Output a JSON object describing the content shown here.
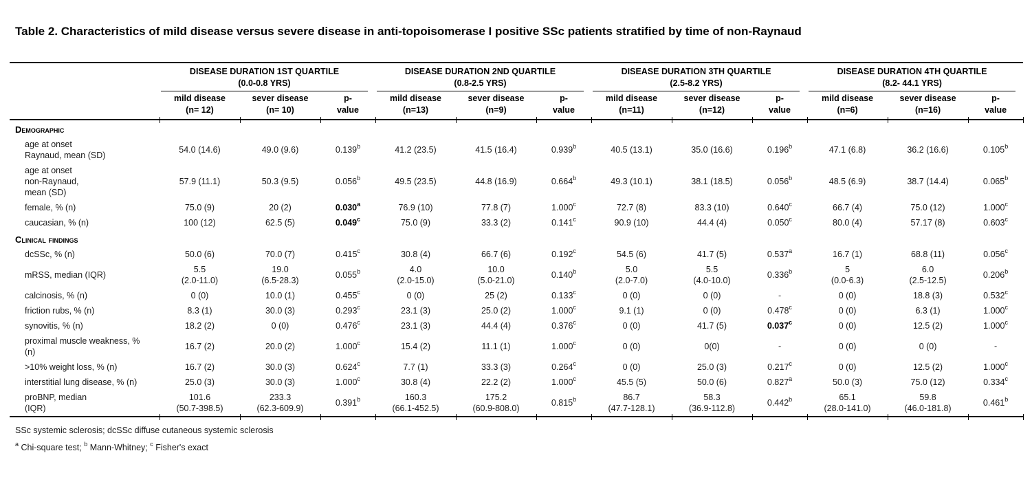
{
  "page": {
    "title": "Table 2. Characteristics of mild disease versus severe disease in anti-topoisomerase I positive SSc patients stratified by time of non-Raynaud",
    "background_color": "#ffffff",
    "rule_color": "#000000",
    "text_color": "#1a1a1a"
  },
  "table": {
    "groups": [
      {
        "title": "DISEASE DURATION 1ST QUARTILE",
        "range": "(0.0-0.8 YRS)",
        "cols": [
          [
            "mild disease",
            "(n= 12)"
          ],
          [
            "sever disease",
            "(n= 10)"
          ],
          [
            "p-",
            "value"
          ]
        ]
      },
      {
        "title": "DISEASE DURATION 2ND QUARTILE",
        "range": "(0.8-2.5 YRS)",
        "cols": [
          [
            "mild disease",
            "(n=13)"
          ],
          [
            "sever disease",
            "(n=9)"
          ],
          [
            "p-",
            "value"
          ]
        ]
      },
      {
        "title": "DISEASE DURATION 3TH QUARTILE",
        "range": "(2.5-8.2 YRS)",
        "cols": [
          [
            "mild disease",
            "(n=11)"
          ],
          [
            "sever disease",
            "(n=12)"
          ],
          [
            "p-",
            "value"
          ]
        ]
      },
      {
        "title": "DISEASE DURATION 4TH QUARTILE",
        "range": "(8.2- 44.1 YRS)",
        "cols": [
          [
            "mild disease",
            "(n=6)"
          ],
          [
            "sever disease",
            "(n=16)"
          ],
          [
            "p-",
            "value"
          ]
        ]
      }
    ],
    "sections": [
      {
        "label": "Demographic",
        "rows": [
          {
            "label": [
              "age at onset",
              "Raynaud, mean (SD)"
            ],
            "cells": [
              {
                "mild": [
                  "54.0 (14.6)"
                ],
                "sever": [
                  "49.0 (9.6)"
                ],
                "p": "0.139",
                "ps": "b",
                "pb": false
              },
              {
                "mild": [
                  "41.2 (23.5)"
                ],
                "sever": [
                  "41.5 (16.4)"
                ],
                "p": "0.939",
                "ps": "b",
                "pb": false
              },
              {
                "mild": [
                  "40.5 (13.1)"
                ],
                "sever": [
                  "35.0 (16.6)"
                ],
                "p": "0.196",
                "ps": "b",
                "pb": false
              },
              {
                "mild": [
                  "47.1 (6.8)"
                ],
                "sever": [
                  "36.2 (16.6)"
                ],
                "p": "0.105",
                "ps": "b",
                "pb": false
              }
            ]
          },
          {
            "label": [
              "age at onset",
              "non-Raynaud,",
              "mean (SD)"
            ],
            "cells": [
              {
                "mild": [
                  "57.9 (11.1)"
                ],
                "sever": [
                  "50.3 (9.5)"
                ],
                "p": "0.056",
                "ps": "b",
                "pb": false
              },
              {
                "mild": [
                  "49.5 (23.5)"
                ],
                "sever": [
                  "44.8 (16.9)"
                ],
                "p": "0.664",
                "ps": "b",
                "pb": false
              },
              {
                "mild": [
                  "49.3 (10.1)"
                ],
                "sever": [
                  "38.1 (18.5)"
                ],
                "p": "0.056",
                "ps": "b",
                "pb": false
              },
              {
                "mild": [
                  "48.5 (6.9)"
                ],
                "sever": [
                  "38.7 (14.4)"
                ],
                "p": "0.065",
                "ps": "b",
                "pb": false
              }
            ]
          },
          {
            "label": [
              "female, % (n)"
            ],
            "cells": [
              {
                "mild": [
                  "75.0 (9)"
                ],
                "sever": [
                  "20 (2)"
                ],
                "p": "0.030",
                "ps": "a",
                "pb": true
              },
              {
                "mild": [
                  "76.9 (10)"
                ],
                "sever": [
                  "77.8 (7)"
                ],
                "p": "1.000",
                "ps": "c",
                "pb": false
              },
              {
                "mild": [
                  "72.7 (8)"
                ],
                "sever": [
                  "83.3 (10)"
                ],
                "p": "0.640",
                "ps": "c",
                "pb": false
              },
              {
                "mild": [
                  "66.7 (4)"
                ],
                "sever": [
                  "75.0 (12)"
                ],
                "p": "1.000",
                "ps": "c",
                "pb": false
              }
            ]
          },
          {
            "label": [
              "caucasian, % (n)"
            ],
            "cells": [
              {
                "mild": [
                  "100 (12)"
                ],
                "sever": [
                  "62.5 (5)"
                ],
                "p": "0.049",
                "ps": "c",
                "pb": true
              },
              {
                "mild": [
                  "75.0 (9)"
                ],
                "sever": [
                  "33.3 (2)"
                ],
                "p": "0.141",
                "ps": "c",
                "pb": false
              },
              {
                "mild": [
                  "90.9 (10)"
                ],
                "sever": [
                  "44.4 (4)"
                ],
                "p": "0.050",
                "ps": "c",
                "pb": false
              },
              {
                "mild": [
                  "80.0 (4)"
                ],
                "sever": [
                  "57.17 (8)"
                ],
                "p": "0.603",
                "ps": "c",
                "pb": false
              }
            ]
          }
        ]
      },
      {
        "label": "Clinical findings",
        "rows": [
          {
            "label": [
              "dcSSc, % (n)"
            ],
            "cells": [
              {
                "mild": [
                  "50.0 (6)"
                ],
                "sever": [
                  "70.0 (7)"
                ],
                "p": "0.415",
                "ps": "c",
                "pb": false
              },
              {
                "mild": [
                  "30.8 (4)"
                ],
                "sever": [
                  "66.7 (6)"
                ],
                "p": "0.192",
                "ps": "c",
                "pb": false
              },
              {
                "mild": [
                  "54.5 (6)"
                ],
                "sever": [
                  "41.7 (5)"
                ],
                "p": "0.537",
                "ps": "a",
                "pb": false
              },
              {
                "mild": [
                  "16.7 (1)"
                ],
                "sever": [
                  "68.8 (11)"
                ],
                "p": "0.056",
                "ps": "c",
                "pb": false
              }
            ]
          },
          {
            "label": [
              "mRSS, median (IQR)"
            ],
            "cells": [
              {
                "mild": [
                  "5.5",
                  "(2.0-11.0)"
                ],
                "sever": [
                  "19.0",
                  "(6.5-28.3)"
                ],
                "p": "0.055",
                "ps": "b",
                "pb": false
              },
              {
                "mild": [
                  "4.0",
                  "(2.0-15.0)"
                ],
                "sever": [
                  "10.0",
                  "(5.0-21.0)"
                ],
                "p": "0.140",
                "ps": "b",
                "pb": false
              },
              {
                "mild": [
                  "5.0",
                  "(2.0-7.0)"
                ],
                "sever": [
                  "5.5",
                  "(4.0-10.0)"
                ],
                "p": "0.336",
                "ps": "b",
                "pb": false
              },
              {
                "mild": [
                  "5",
                  "(0.0-6.3)"
                ],
                "sever": [
                  "6.0",
                  "(2.5-12.5)"
                ],
                "p": "0.206",
                "ps": "b",
                "pb": false
              }
            ]
          },
          {
            "label": [
              "calcinosis, % (n)"
            ],
            "cells": [
              {
                "mild": [
                  "0 (0)"
                ],
                "sever": [
                  "10.0 (1)"
                ],
                "p": "0.455",
                "ps": "c",
                "pb": false
              },
              {
                "mild": [
                  "0 (0)"
                ],
                "sever": [
                  "25 (2)"
                ],
                "p": "0.133",
                "ps": "c",
                "pb": false
              },
              {
                "mild": [
                  "0 (0)"
                ],
                "sever": [
                  "0 (0)"
                ],
                "p": "-",
                "ps": "",
                "pb": false
              },
              {
                "mild": [
                  "0 (0)"
                ],
                "sever": [
                  "18.8 (3)"
                ],
                "p": "0.532",
                "ps": "c",
                "pb": false
              }
            ]
          },
          {
            "label": [
              "friction rubs, % (n)"
            ],
            "cells": [
              {
                "mild": [
                  "8.3 (1)"
                ],
                "sever": [
                  "30.0 (3)"
                ],
                "p": "0.293",
                "ps": "c",
                "pb": false
              },
              {
                "mild": [
                  "23.1 (3)"
                ],
                "sever": [
                  "25.0 (2)"
                ],
                "p": "1.000",
                "ps": "c",
                "pb": false
              },
              {
                "mild": [
                  "9.1 (1)"
                ],
                "sever": [
                  "0 (0)"
                ],
                "p": "0.478",
                "ps": "c",
                "pb": false
              },
              {
                "mild": [
                  "0 (0)"
                ],
                "sever": [
                  "6.3 (1)"
                ],
                "p": "1.000",
                "ps": "c",
                "pb": false
              }
            ]
          },
          {
            "label": [
              "synovitis, % (n)"
            ],
            "cells": [
              {
                "mild": [
                  "18.2 (2)"
                ],
                "sever": [
                  "0 (0)"
                ],
                "p": "0.476",
                "ps": "c",
                "pb": false
              },
              {
                "mild": [
                  "23.1 (3)"
                ],
                "sever": [
                  "44.4 (4)"
                ],
                "p": "0.376",
                "ps": "c",
                "pb": false
              },
              {
                "mild": [
                  "0 (0)"
                ],
                "sever": [
                  "41.7 (5)"
                ],
                "p": "0.037",
                "ps": "c",
                "pb": true
              },
              {
                "mild": [
                  "0 (0)"
                ],
                "sever": [
                  "12.5 (2)"
                ],
                "p": "1.000",
                "ps": "c",
                "pb": false
              }
            ]
          },
          {
            "label": [
              "proximal muscle weakness, %",
              "(n)"
            ],
            "cells": [
              {
                "mild": [
                  "16.7 (2)"
                ],
                "sever": [
                  "20.0 (2)"
                ],
                "p": "1.000",
                "ps": "c",
                "pb": false
              },
              {
                "mild": [
                  "15.4 (2)"
                ],
                "sever": [
                  "11.1 (1)"
                ],
                "p": "1.000",
                "ps": "c",
                "pb": false
              },
              {
                "mild": [
                  "0 (0)"
                ],
                "sever": [
                  "0(0)"
                ],
                "p": "-",
                "ps": "",
                "pb": false
              },
              {
                "mild": [
                  "0 (0)"
                ],
                "sever": [
                  "0 (0)"
                ],
                "p": "-",
                "ps": "",
                "pb": false
              }
            ]
          },
          {
            "label": [
              ">10% weight loss, % (n)"
            ],
            "cells": [
              {
                "mild": [
                  "16.7 (2)"
                ],
                "sever": [
                  "30.0 (3)"
                ],
                "p": "0.624",
                "ps": "c",
                "pb": false
              },
              {
                "mild": [
                  "7.7 (1)"
                ],
                "sever": [
                  "33.3 (3)"
                ],
                "p": "0.264",
                "ps": "c",
                "pb": false
              },
              {
                "mild": [
                  "0 (0)"
                ],
                "sever": [
                  "25.0 (3)"
                ],
                "p": "0.217",
                "ps": "c",
                "pb": false
              },
              {
                "mild": [
                  "0 (0)"
                ],
                "sever": [
                  "12.5 (2)"
                ],
                "p": "1.000",
                "ps": "c",
                "pb": false
              }
            ]
          },
          {
            "label": [
              "interstitial lung disease, % (n)"
            ],
            "cells": [
              {
                "mild": [
                  "25.0 (3)"
                ],
                "sever": [
                  "30.0 (3)"
                ],
                "p": "1.000",
                "ps": "c",
                "pb": false
              },
              {
                "mild": [
                  "30.8 (4)"
                ],
                "sever": [
                  "22.2 (2)"
                ],
                "p": "1.000",
                "ps": "c",
                "pb": false
              },
              {
                "mild": [
                  "45.5 (5)"
                ],
                "sever": [
                  "50.0 (6)"
                ],
                "p": "0.827",
                "ps": "a",
                "pb": false
              },
              {
                "mild": [
                  "50.0 (3)"
                ],
                "sever": [
                  "75.0 (12)"
                ],
                "p": "0.334",
                "ps": "c",
                "pb": false
              }
            ]
          },
          {
            "label": [
              "proBNP, median",
              "(IQR)"
            ],
            "cells": [
              {
                "mild": [
                  "101.6",
                  "(50.7-398.5)"
                ],
                "sever": [
                  "233.3",
                  "(62.3-609.9)"
                ],
                "p": "0.391",
                "ps": "b",
                "pb": false
              },
              {
                "mild": [
                  "160.3",
                  "(66.1-452.5)"
                ],
                "sever": [
                  "175.2",
                  "(60.9-808.0)"
                ],
                "p": "0.815",
                "ps": "b",
                "pb": false
              },
              {
                "mild": [
                  "86.7",
                  "(47.7-128.1)"
                ],
                "sever": [
                  "58.3",
                  "(36.9-112.8)"
                ],
                "p": "0.442",
                "ps": "b",
                "pb": false
              },
              {
                "mild": [
                  "65.1",
                  "(28.0-141.0)"
                ],
                "sever": [
                  "59.8",
                  "(46.0-181.8)"
                ],
                "p": "0.461",
                "ps": "b",
                "pb": false
              }
            ]
          }
        ]
      }
    ],
    "footnotes": {
      "abbrev": "SSc systemic sclerosis; dcSSc diffuse cutaneous systemic sclerosis",
      "tests": [
        {
          "sup": "a",
          "text": " Chi-square test; "
        },
        {
          "sup": "b",
          "text": " Mann-Whitney; "
        },
        {
          "sup": "c",
          "text": " Fisher's exact"
        }
      ]
    },
    "layout": {
      "label_col_width": 218,
      "group_col_widths": [
        117,
        117,
        80
      ]
    }
  }
}
